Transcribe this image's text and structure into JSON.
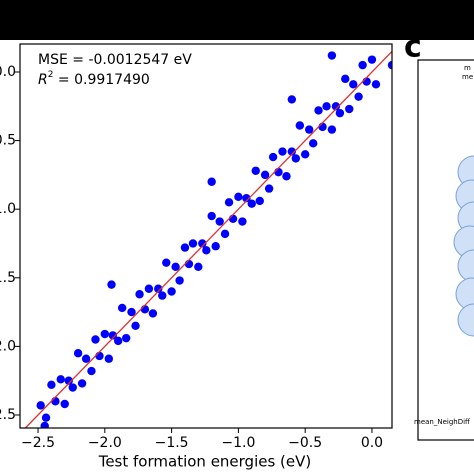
{
  "chart_data": {
    "type": "scatter",
    "x_label": "Test formation energies (eV)",
    "annotation_mse": "MSE = -0.0012547 eV",
    "annotation_r2_symbol": "R",
    "annotation_r2_exponent": "2",
    "annotation_r2_value": " = 0.9917490",
    "panel_label": "c",
    "panel_texts": [
      "m",
      "me",
      "mean_NeighDiff"
    ],
    "xlim": [
      -2.635,
      0.15
    ],
    "ylim": [
      -2.595,
      0.204
    ],
    "xticks": [
      {
        "value": -2.5,
        "label": "−2.5"
      },
      {
        "value": -2.0,
        "label": "−2.0"
      },
      {
        "value": -1.5,
        "label": "−1.5"
      },
      {
        "value": -1.0,
        "label": "−1.0"
      },
      {
        "value": -0.5,
        "label": "−0.5"
      },
      {
        "value": 0,
        "label": "0.0"
      }
    ],
    "yticks": [
      {
        "value": 0,
        "label": "0.0"
      },
      {
        "value": -0.5,
        "label": "−0.5"
      },
      {
        "value": -1.0,
        "label": "−1.0"
      },
      {
        "value": -1.5,
        "label": "−1.5"
      },
      {
        "value": -2.0,
        "label": "−2.0"
      },
      {
        "value": -2.5,
        "label": "−2.5"
      }
    ],
    "reference_line_color": "#e03030",
    "series": [
      {
        "color": "#0000ff",
        "x": [
          -2.48,
          -2.44,
          -2.4,
          -2.37,
          -2.33,
          -2.3,
          -2.27,
          -2.24,
          -2.2,
          -2.17,
          -2.14,
          -2.1,
          -2.07,
          -2.04,
          -2.0,
          -1.97,
          -1.94,
          -1.9,
          -1.87,
          -1.84,
          -1.8,
          -1.77,
          -1.74,
          -1.7,
          -1.67,
          -1.64,
          -1.6,
          -1.57,
          -1.54,
          -1.5,
          -1.47,
          -1.44,
          -1.4,
          -1.37,
          -1.34,
          -1.3,
          -1.27,
          -1.24,
          -1.2,
          -1.17,
          -1.14,
          -1.1,
          -1.07,
          -1.04,
          -1.0,
          -0.97,
          -0.94,
          -0.9,
          -0.87,
          -0.84,
          -0.8,
          -0.77,
          -0.74,
          -0.7,
          -0.67,
          -0.64,
          -0.6,
          -0.57,
          -0.54,
          -0.5,
          -0.47,
          -0.44,
          -0.4,
          -0.37,
          -0.34,
          -0.3,
          -0.27,
          -0.24,
          -0.2,
          -0.17,
          -0.14,
          -0.1,
          -0.07,
          -0.04,
          0.0,
          0.03,
          -2.45,
          -1.95,
          -1.2,
          -0.6,
          0.15,
          -0.3
        ],
        "values": [
          -2.43,
          -2.52,
          -2.28,
          -2.4,
          -2.24,
          -2.42,
          -2.25,
          -2.3,
          -2.05,
          -2.27,
          -2.09,
          -2.18,
          -1.95,
          -2.07,
          -1.91,
          -2.09,
          -1.92,
          -1.96,
          -1.72,
          -1.94,
          -1.75,
          -1.85,
          -1.62,
          -1.73,
          -1.58,
          -1.76,
          -1.58,
          -1.63,
          -1.39,
          -1.6,
          -1.42,
          -1.52,
          -1.28,
          -1.4,
          -1.25,
          -1.42,
          -1.25,
          -1.3,
          -1.05,
          -1.27,
          -1.09,
          -1.18,
          -0.95,
          -1.07,
          -0.91,
          -1.09,
          -0.92,
          -0.96,
          -0.72,
          -0.94,
          -0.75,
          -0.85,
          -0.62,
          -0.73,
          -0.58,
          -0.76,
          -0.58,
          -0.63,
          -0.39,
          -0.6,
          -0.42,
          -0.52,
          -0.28,
          -0.4,
          -0.25,
          -0.42,
          -0.25,
          -0.3,
          -0.05,
          -0.27,
          -0.09,
          -0.18,
          0.05,
          -0.07,
          0.09,
          -0.09,
          -2.58,
          -1.55,
          -0.8,
          -0.2,
          0.05,
          0.12
        ]
      }
    ]
  }
}
